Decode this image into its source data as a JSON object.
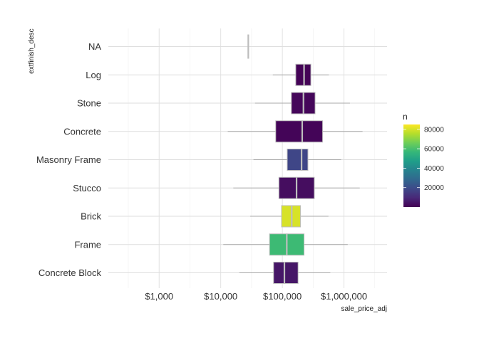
{
  "chart_data": {
    "type": "boxplot",
    "orientation": "horizontal",
    "x_scale": "log10",
    "xlim": [
      150,
      5000000
    ],
    "xlabel": "sale_price_adj",
    "ylabel": "extfinish_desc",
    "x_ticks": [
      {
        "value": 1000,
        "label": "$1,000"
      },
      {
        "value": 10000,
        "label": "$10,000"
      },
      {
        "value": 100000,
        "label": "$100,000"
      },
      {
        "value": 1000000,
        "label": "$1,000,000"
      }
    ],
    "categories": [
      "Concrete Block",
      "Frame",
      "Brick",
      "Stucco",
      "Masonry Frame",
      "Concrete",
      "Stone",
      "Log",
      "NA"
    ],
    "boxes": [
      {
        "category": "Concrete Block",
        "whisker_low": 20000,
        "q1": 72000,
        "median": 108000,
        "q3": 180000,
        "whisker_high": 600000,
        "n": 5000
      },
      {
        "category": "Frame",
        "whisker_low": 11000,
        "q1": 62000,
        "median": 118000,
        "q3": 225000,
        "whisker_high": 1150000,
        "n": 58000
      },
      {
        "category": "Brick",
        "whisker_low": 30000,
        "q1": 97000,
        "median": 142000,
        "q3": 197000,
        "whisker_high": 560000,
        "n": 80000
      },
      {
        "category": "Stucco",
        "whisker_low": 16000,
        "q1": 88000,
        "median": 170000,
        "q3": 330000,
        "whisker_high": 1800000,
        "n": 3000
      },
      {
        "category": "Masonry Frame",
        "whisker_low": 34000,
        "q1": 120000,
        "median": 205000,
        "q3": 260000,
        "whisker_high": 900000,
        "n": 18000
      },
      {
        "category": "Concrete",
        "whisker_low": 13000,
        "q1": 78000,
        "median": 210000,
        "q3": 450000,
        "whisker_high": 2000000,
        "n": 1000
      },
      {
        "category": "Stone",
        "whisker_low": 36000,
        "q1": 140000,
        "median": 220000,
        "q3": 340000,
        "whisker_high": 1250000,
        "n": 1500
      },
      {
        "category": "Log",
        "whisker_low": 70000,
        "q1": 165000,
        "median": 225000,
        "q3": 290000,
        "whisker_high": 570000,
        "n": 500
      },
      {
        "category": "NA",
        "whisker_low": 28000,
        "q1": 28000,
        "median": 28000,
        "q3": 28000,
        "whisker_high": 28000,
        "n": 10
      }
    ],
    "legend": {
      "title": "n",
      "position": "right",
      "min": 0,
      "max": 85000,
      "ticks": [
        {
          "value": 20000,
          "label": "20000"
        },
        {
          "value": 40000,
          "label": "40000"
        },
        {
          "value": 60000,
          "label": "60000"
        },
        {
          "value": 80000,
          "label": "80000"
        }
      ],
      "palette": "viridis"
    },
    "grid": true
  },
  "colors": {
    "viridis": [
      "#440154",
      "#482878",
      "#3e4989",
      "#31688e",
      "#26828e",
      "#1f9e89",
      "#35b779",
      "#6ece58",
      "#b5de2b",
      "#fde725"
    ],
    "box_outline": "#bdbdbd",
    "whisker": "#a8a8a8",
    "grid_major": "#dedede",
    "grid_minor": "#efefef",
    "text": "#333333"
  }
}
